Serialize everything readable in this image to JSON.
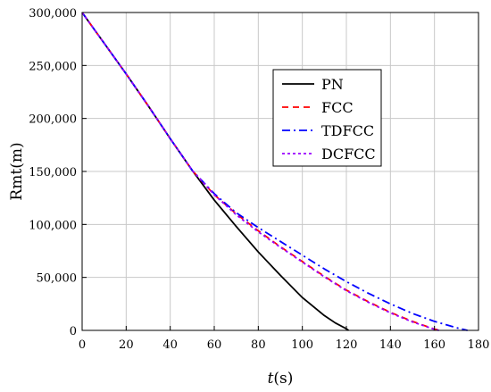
{
  "chart_data": {
    "type": "line",
    "xlabel_italic": "t",
    "xlabel_rest": "(s)",
    "ylabel": "Rmt(m)",
    "xlim": [
      0,
      180
    ],
    "ylim": [
      0,
      300000
    ],
    "grid": true,
    "legend_position": "upper-right-center",
    "x_ticks": [
      {
        "value": 0,
        "label": "0"
      },
      {
        "value": 20,
        "label": "20"
      },
      {
        "value": 40,
        "label": "40"
      },
      {
        "value": 60,
        "label": "60"
      },
      {
        "value": 80,
        "label": "80"
      },
      {
        "value": 100,
        "label": "100"
      },
      {
        "value": 120,
        "label": "120"
      },
      {
        "value": 140,
        "label": "140"
      },
      {
        "value": 160,
        "label": "160"
      },
      {
        "value": 180,
        "label": "180"
      }
    ],
    "y_ticks": [
      {
        "value": 0,
        "label": "0"
      },
      {
        "value": 50000,
        "label": "50,000"
      },
      {
        "value": 100000,
        "label": "100,000"
      },
      {
        "value": 150000,
        "label": "150,000"
      },
      {
        "value": 200000,
        "label": "200,000"
      },
      {
        "value": 250000,
        "label": "250,000"
      },
      {
        "value": 300000,
        "label": "300,000"
      }
    ],
    "series": [
      {
        "name": "PN",
        "color": "#000000",
        "dash": "solid",
        "x": [
          0,
          10,
          20,
          30,
          40,
          50,
          55,
          60,
          70,
          80,
          90,
          100,
          110,
          115,
          120,
          121
        ],
        "y": [
          300000,
          271000,
          242000,
          212000,
          181000,
          151000,
          137000,
          123000,
          98000,
          74000,
          52000,
          31000,
          14000,
          7000,
          1500,
          0
        ]
      },
      {
        "name": "FCC",
        "color": "#ff0000",
        "dash": "dashed",
        "x": [
          0,
          10,
          20,
          30,
          40,
          50,
          60,
          70,
          80,
          90,
          100,
          110,
          120,
          130,
          140,
          150,
          160,
          163
        ],
        "y": [
          300000,
          271000,
          242000,
          212000,
          181000,
          151000,
          128000,
          110000,
          94000,
          79000,
          65000,
          51000,
          38000,
          27000,
          17000,
          8500,
          1200,
          0
        ]
      },
      {
        "name": "TDFCC",
        "color": "#0000ff",
        "dash": "dashdot",
        "x": [
          0,
          10,
          20,
          30,
          40,
          50,
          60,
          70,
          80,
          90,
          100,
          110,
          120,
          130,
          140,
          150,
          160,
          170,
          175
        ],
        "y": [
          300000,
          271000,
          242000,
          212000,
          181000,
          151000,
          129000,
          111000,
          97000,
          84000,
          71000,
          58000,
          46000,
          35000,
          25000,
          16000,
          8500,
          2500,
          0
        ]
      },
      {
        "name": "DCFCC",
        "color": "#9900ff",
        "dash": "dotted",
        "x": [
          0,
          10,
          20,
          30,
          40,
          50,
          60,
          70,
          80,
          90,
          100,
          110,
          120,
          130,
          140,
          150,
          160,
          162
        ],
        "y": [
          300000,
          271000,
          242000,
          212000,
          181000,
          151000,
          128000,
          109000,
          93000,
          78500,
          64500,
          50500,
          37500,
          26500,
          16500,
          8000,
          1000,
          0
        ]
      }
    ]
  }
}
